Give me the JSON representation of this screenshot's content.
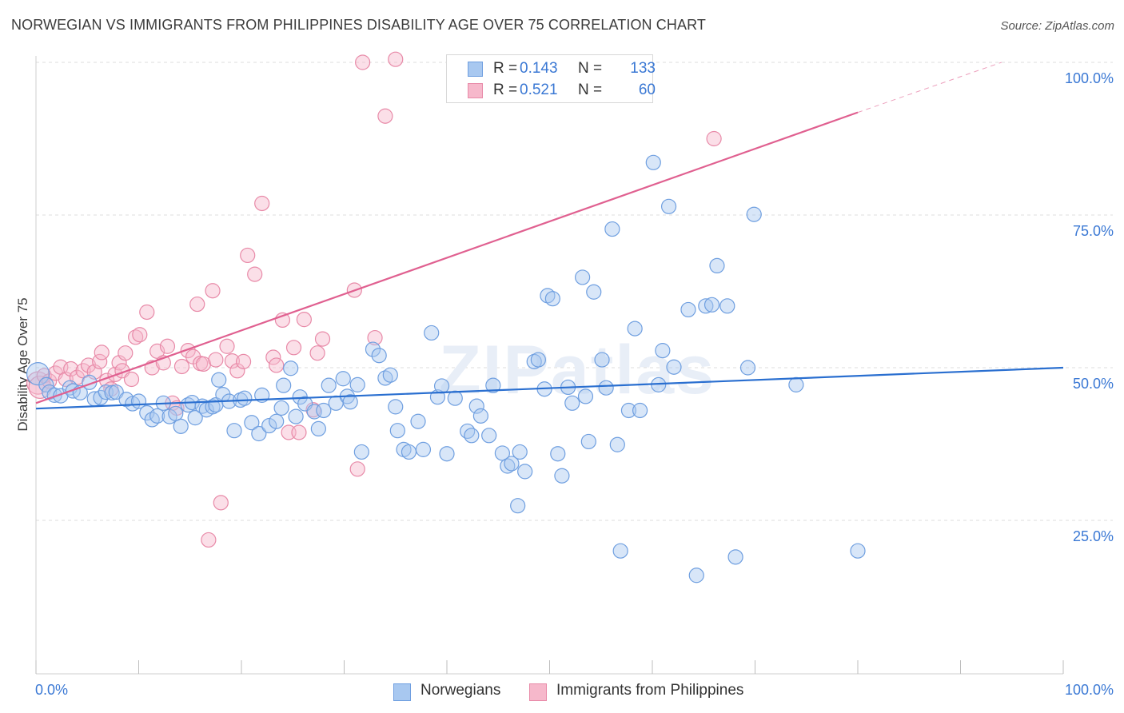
{
  "header": {
    "title": "NORWEGIAN VS IMMIGRANTS FROM PHILIPPINES DISABILITY AGE OVER 75 CORRELATION CHART",
    "source": "Source: ZipAtlas.com"
  },
  "watermark": "ZIPatlas",
  "legend_top": {
    "rows": [
      {
        "r_label": "R =",
        "r_value": "0.143",
        "n_label": "N =",
        "n_value": "133"
      },
      {
        "r_label": "R =",
        "r_value": "0.521",
        "n_label": "N =",
        "n_value": "60"
      }
    ]
  },
  "legend_bottom": {
    "items": [
      {
        "label": "Norwegians"
      },
      {
        "label": "Immigrants from Philippines"
      }
    ]
  },
  "colors": {
    "blue_fill": "#a8c8f0",
    "blue_stroke": "#6f9fe0",
    "blue_line": "#2a6fd0",
    "pink_fill": "#f6b8cb",
    "pink_stroke": "#e88aa8",
    "pink_line": "#e06090",
    "tick_label": "#3a78d4",
    "grid": "#dddddd"
  },
  "chart_data": {
    "type": "scatter",
    "title": "NORWEGIAN VS IMMIGRANTS FROM PHILIPPINES DISABILITY AGE OVER 75 CORRELATION CHART",
    "xlabel": "",
    "ylabel": "Disability Age Over 75",
    "xlim": [
      0,
      100
    ],
    "ylim": [
      0,
      105
    ],
    "x_tick_labels": [
      "0.0%",
      "100.0%"
    ],
    "y_ticks": [
      25,
      50,
      75,
      100
    ],
    "y_tick_labels": [
      "25.0%",
      "50.0%",
      "75.0%",
      "100.0%"
    ],
    "grid": true,
    "legend_position": "top-center",
    "series": [
      {
        "name": "Norwegians",
        "color": "#6f9fe0",
        "R": 0.143,
        "N": 133,
        "trend": {
          "x": [
            0,
            100
          ],
          "y": [
            43.3,
            50.0
          ],
          "dashed_extension": false
        },
        "points": [
          [
            0.2,
            49.0
          ],
          [
            1.0,
            47.2
          ],
          [
            1.3,
            46.0
          ],
          [
            1.8,
            45.5
          ],
          [
            2.4,
            45.4
          ],
          [
            3.3,
            46.7
          ],
          [
            3.6,
            46.2
          ],
          [
            4.3,
            45.9
          ],
          [
            5.2,
            47.6
          ],
          [
            5.7,
            44.9
          ],
          [
            6.3,
            45.1
          ],
          [
            6.8,
            46.0
          ],
          [
            7.4,
            45.9
          ],
          [
            7.8,
            46.0
          ],
          [
            8.8,
            44.8
          ],
          [
            9.4,
            44.1
          ],
          [
            10.0,
            44.5
          ],
          [
            10.8,
            42.6
          ],
          [
            11.3,
            41.5
          ],
          [
            11.8,
            42.1
          ],
          [
            12.4,
            44.2
          ],
          [
            13.0,
            42.0
          ],
          [
            13.6,
            42.5
          ],
          [
            14.1,
            40.4
          ],
          [
            14.8,
            43.9
          ],
          [
            15.2,
            44.3
          ],
          [
            15.5,
            41.8
          ],
          [
            16.2,
            43.7
          ],
          [
            16.6,
            43.1
          ],
          [
            17.2,
            43.6
          ],
          [
            17.5,
            43.9
          ],
          [
            17.8,
            48.0
          ],
          [
            18.2,
            45.6
          ],
          [
            18.8,
            44.5
          ],
          [
            19.3,
            39.7
          ],
          [
            19.9,
            44.7
          ],
          [
            20.3,
            45.0
          ],
          [
            21.0,
            41.0
          ],
          [
            21.7,
            39.2
          ],
          [
            22.0,
            45.5
          ],
          [
            22.7,
            40.5
          ],
          [
            23.4,
            41.2
          ],
          [
            23.9,
            43.4
          ],
          [
            24.1,
            47.1
          ],
          [
            24.8,
            49.9
          ],
          [
            25.3,
            42.0
          ],
          [
            25.7,
            45.2
          ],
          [
            26.2,
            44.1
          ],
          [
            27.1,
            42.8
          ],
          [
            27.5,
            40.0
          ],
          [
            28.0,
            43.0
          ],
          [
            28.5,
            47.1
          ],
          [
            29.2,
            44.2
          ],
          [
            29.9,
            48.2
          ],
          [
            30.3,
            45.3
          ],
          [
            30.6,
            44.4
          ],
          [
            31.3,
            47.2
          ],
          [
            31.7,
            36.2
          ],
          [
            32.8,
            53.0
          ],
          [
            33.4,
            52.0
          ],
          [
            34.0,
            48.3
          ],
          [
            34.5,
            48.8
          ],
          [
            35.0,
            43.6
          ],
          [
            35.2,
            39.7
          ],
          [
            35.8,
            36.6
          ],
          [
            36.3,
            36.2
          ],
          [
            37.2,
            41.2
          ],
          [
            37.7,
            36.6
          ],
          [
            38.5,
            55.7
          ],
          [
            39.1,
            45.2
          ],
          [
            39.5,
            47.0
          ],
          [
            40.0,
            35.9
          ],
          [
            40.8,
            45.0
          ],
          [
            42.0,
            39.6
          ],
          [
            42.4,
            38.9
          ],
          [
            42.9,
            43.7
          ],
          [
            43.3,
            42.1
          ],
          [
            44.1,
            38.9
          ],
          [
            44.5,
            47.1
          ],
          [
            45.4,
            36.0
          ],
          [
            45.9,
            33.9
          ],
          [
            46.3,
            34.3
          ],
          [
            46.9,
            27.4
          ],
          [
            47.1,
            36.2
          ],
          [
            47.6,
            33.0
          ],
          [
            48.5,
            51.0
          ],
          [
            48.9,
            51.3
          ],
          [
            49.5,
            46.5
          ],
          [
            49.8,
            61.8
          ],
          [
            50.3,
            61.3
          ],
          [
            50.8,
            35.9
          ],
          [
            51.2,
            32.3
          ],
          [
            51.8,
            46.8
          ],
          [
            52.2,
            44.2
          ],
          [
            53.2,
            64.8
          ],
          [
            53.5,
            45.3
          ],
          [
            53.8,
            37.9
          ],
          [
            54.3,
            62.4
          ],
          [
            55.1,
            51.3
          ],
          [
            55.5,
            46.7
          ],
          [
            56.1,
            72.7
          ],
          [
            56.6,
            37.4
          ],
          [
            56.9,
            20.0
          ],
          [
            57.7,
            43.0
          ],
          [
            58.3,
            56.4
          ],
          [
            58.8,
            43.0
          ],
          [
            60.1,
            83.6
          ],
          [
            60.6,
            47.2
          ],
          [
            61.0,
            52.8
          ],
          [
            61.6,
            76.4
          ],
          [
            62.1,
            50.1
          ],
          [
            63.5,
            59.5
          ],
          [
            64.3,
            16.0
          ],
          [
            65.2,
            60.1
          ],
          [
            65.8,
            60.3
          ],
          [
            66.3,
            66.7
          ],
          [
            67.3,
            60.1
          ],
          [
            68.1,
            19.0
          ],
          [
            69.3,
            50.0
          ],
          [
            69.9,
            75.1
          ],
          [
            74.0,
            47.2
          ],
          [
            80.0,
            20.0
          ]
        ]
      },
      {
        "name": "Immigrants from Philippines",
        "color": "#e88aa8",
        "R": 0.521,
        "N": 60,
        "trend": {
          "x": [
            0,
            80
          ],
          "y": [
            44.2,
            91.8
          ],
          "dashed_extension": true,
          "dashed_to": [
            94,
            100
          ]
        },
        "points": [
          [
            0.2,
            47.5
          ],
          [
            0.4,
            46.8
          ],
          [
            0.8,
            48.7
          ],
          [
            1.3,
            47.8
          ],
          [
            1.9,
            49.1
          ],
          [
            2.4,
            50.1
          ],
          [
            2.9,
            48.1
          ],
          [
            3.4,
            49.8
          ],
          [
            4.0,
            48.4
          ],
          [
            4.6,
            49.5
          ],
          [
            5.1,
            50.4
          ],
          [
            5.7,
            49.3
          ],
          [
            6.2,
            51.0
          ],
          [
            6.4,
            52.5
          ],
          [
            6.9,
            47.9
          ],
          [
            7.3,
            46.5
          ],
          [
            7.7,
            48.9
          ],
          [
            8.1,
            50.8
          ],
          [
            8.4,
            49.5
          ],
          [
            8.7,
            52.4
          ],
          [
            9.3,
            48.1
          ],
          [
            9.7,
            55.0
          ],
          [
            10.1,
            55.4
          ],
          [
            10.8,
            59.1
          ],
          [
            11.3,
            50.0
          ],
          [
            11.8,
            52.7
          ],
          [
            12.4,
            50.8
          ],
          [
            12.8,
            53.5
          ],
          [
            13.3,
            44.2
          ],
          [
            13.7,
            43.4
          ],
          [
            14.2,
            50.2
          ],
          [
            14.8,
            52.8
          ],
          [
            15.3,
            51.8
          ],
          [
            15.7,
            60.4
          ],
          [
            16.0,
            50.7
          ],
          [
            16.3,
            50.6
          ],
          [
            16.8,
            21.8
          ],
          [
            17.2,
            62.6
          ],
          [
            17.5,
            51.3
          ],
          [
            18.0,
            27.9
          ],
          [
            18.6,
            53.5
          ],
          [
            19.1,
            51.1
          ],
          [
            19.6,
            49.5
          ],
          [
            20.2,
            51.0
          ],
          [
            20.6,
            68.4
          ],
          [
            21.3,
            65.3
          ],
          [
            22.0,
            76.9
          ],
          [
            23.1,
            51.7
          ],
          [
            23.4,
            50.4
          ],
          [
            24.0,
            57.8
          ],
          [
            24.6,
            39.4
          ],
          [
            25.1,
            53.3
          ],
          [
            25.6,
            39.4
          ],
          [
            26.1,
            57.9
          ],
          [
            27.0,
            43.1
          ],
          [
            27.4,
            52.4
          ],
          [
            27.9,
            54.7
          ],
          [
            31.0,
            62.7
          ],
          [
            31.3,
            33.4
          ],
          [
            31.8,
            100.0
          ],
          [
            33.0,
            54.9
          ],
          [
            34.0,
            91.2
          ],
          [
            35.0,
            100.5
          ],
          [
            66.0,
            87.5
          ]
        ]
      }
    ]
  }
}
